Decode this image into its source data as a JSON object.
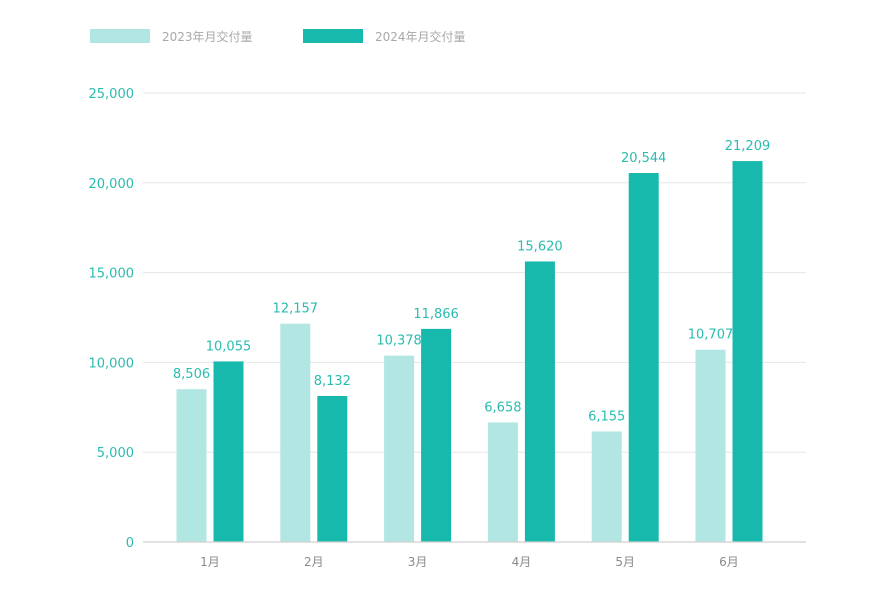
{
  "chart_data": {
    "type": "bar",
    "categories": [
      "1月",
      "2月",
      "3月",
      "4月",
      "5月",
      "6月"
    ],
    "series": [
      {
        "name": "2023年月交付量",
        "values": [
          8506,
          12157,
          10378,
          6658,
          6155,
          10707
        ],
        "labels": [
          "8,506",
          "12,157",
          "10,378",
          "6,658",
          "6,155",
          "10,707"
        ],
        "color": "#b2e6e2"
      },
      {
        "name": "2024年月交付量",
        "values": [
          10055,
          8132,
          11866,
          15620,
          20544,
          21209
        ],
        "labels": [
          "10,055",
          "8,132",
          "11,866",
          "15,620",
          "20,544",
          "21,209"
        ],
        "color": "#17b9ad"
      }
    ],
    "yticks": [
      0,
      5000,
      10000,
      15000,
      20000,
      25000
    ],
    "ytick_labels": [
      "0",
      "5,000",
      "10,000",
      "15,000",
      "20,000",
      "25,000"
    ],
    "ylim": [
      0,
      25000
    ],
    "grid": true,
    "legend_position": "top-left",
    "title": "",
    "xlabel": "",
    "ylabel": ""
  }
}
